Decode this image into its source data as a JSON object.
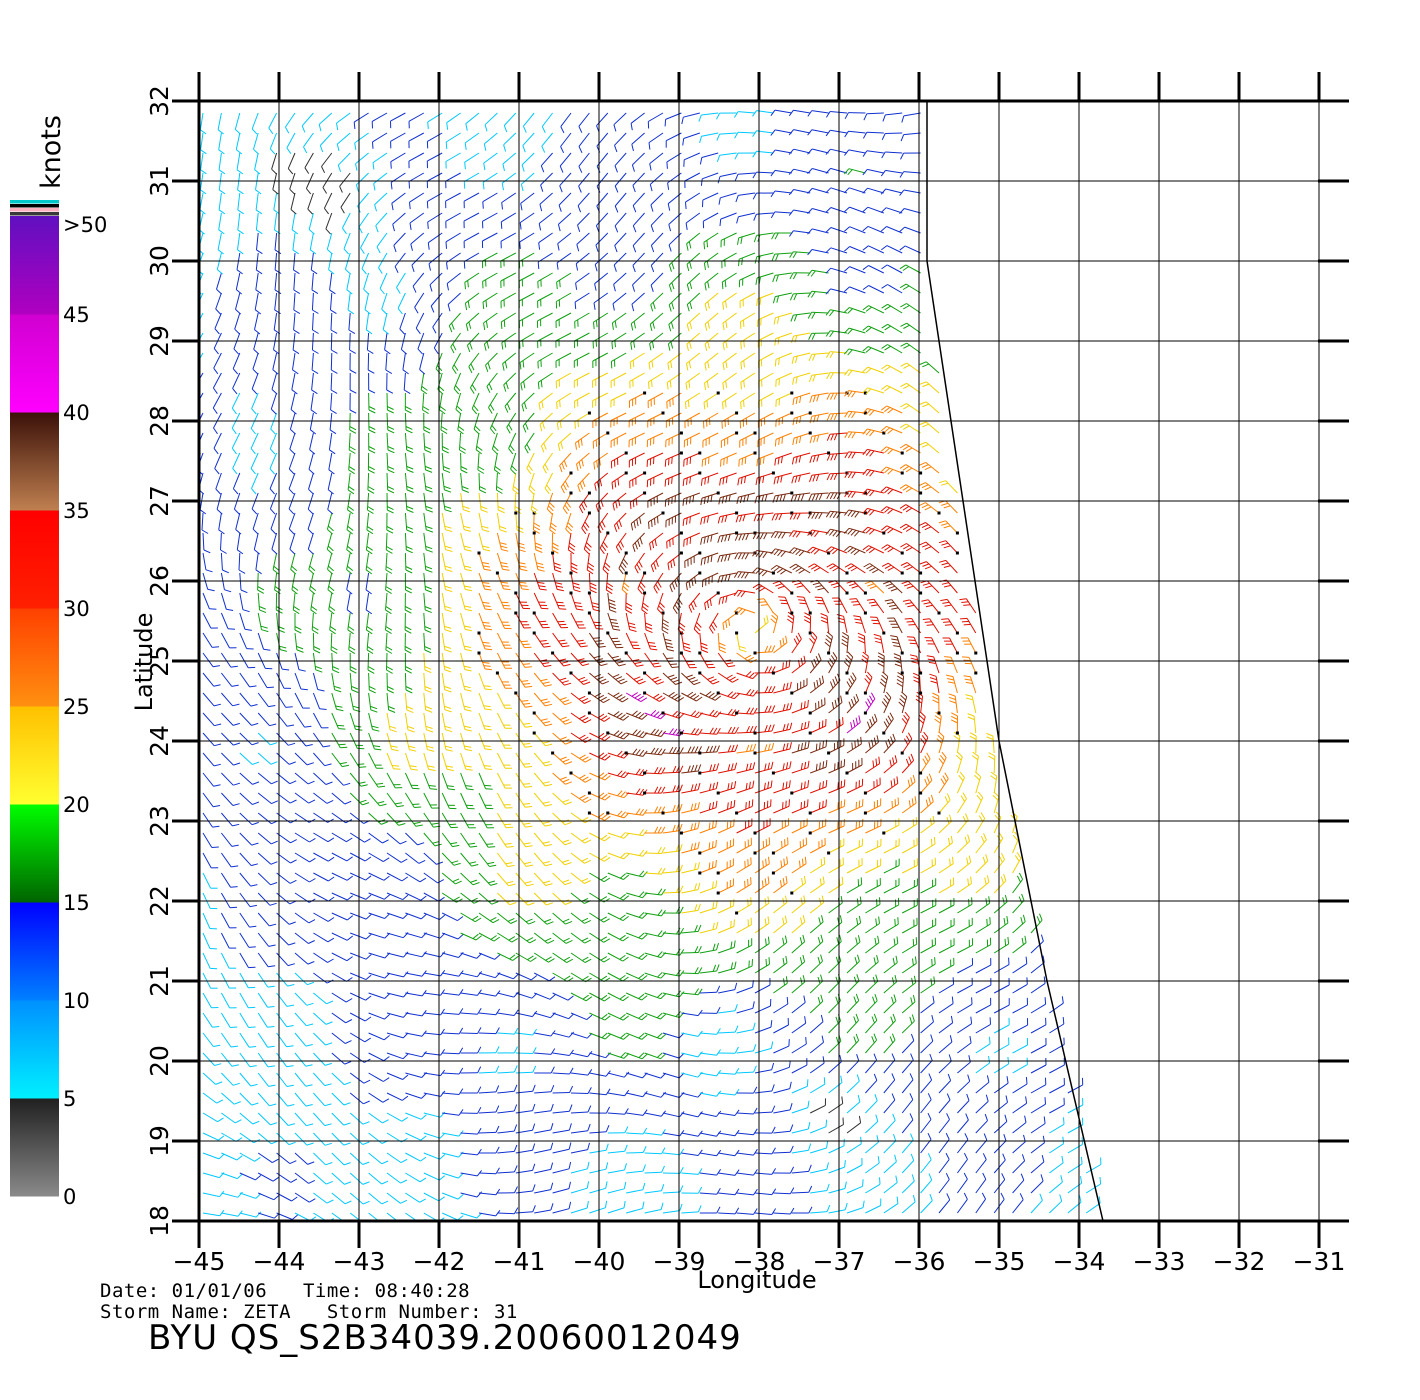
{
  "map": {
    "lon_ticks": [
      -45,
      -44,
      -43,
      -42,
      -41,
      -40,
      -39,
      -38,
      -37,
      -36,
      -35,
      -34,
      -33,
      -32,
      -31
    ],
    "lat_ticks": [
      18,
      19,
      20,
      21,
      22,
      23,
      24,
      25,
      26,
      27,
      28,
      29,
      30,
      31,
      32
    ],
    "lon_range": [
      -45,
      -31
    ],
    "lat_range": [
      18,
      32
    ],
    "xlabel": "Longitude",
    "ylabel": "Latitude",
    "swath_boundary": [
      [
        -45,
        32
      ],
      [
        -35.9,
        32
      ],
      [
        -35.9,
        30
      ],
      [
        -35.0,
        24
      ],
      [
        -34.4,
        21
      ],
      [
        -33.7,
        18
      ],
      [
        -45,
        18
      ]
    ],
    "storm_center": {
      "lon": -38.1,
      "lat": 25.4
    },
    "grid": true
  },
  "colorbar": {
    "unit": "knots",
    "top_label": ">50",
    "labels": [
      "45",
      "40",
      "35",
      "30",
      "25",
      "20",
      "15",
      "10",
      "5",
      "0"
    ],
    "bands": [
      {
        "from": 0,
        "to": 5,
        "colors": [
          "#8a8a8a",
          "#202020"
        ]
      },
      {
        "from": 5,
        "to": 10,
        "colors": [
          "#00f0ff",
          "#0090ff"
        ]
      },
      {
        "from": 10,
        "to": 15,
        "colors": [
          "#0080ff",
          "#0000ff"
        ]
      },
      {
        "from": 15,
        "to": 20,
        "colors": [
          "#006400",
          "#00ff00"
        ]
      },
      {
        "from": 20,
        "to": 25,
        "colors": [
          "#ffff30",
          "#ffc000"
        ]
      },
      {
        "from": 25,
        "to": 30,
        "colors": [
          "#ff9010",
          "#ff4000"
        ]
      },
      {
        "from": 30,
        "to": 35,
        "colors": [
          "#ff2000",
          "#ff0000"
        ]
      },
      {
        "from": 35,
        "to": 40,
        "colors": [
          "#c08050",
          "#3a1008"
        ]
      },
      {
        "from": 40,
        "to": 45,
        "colors": [
          "#ff00ff",
          "#d000d0"
        ]
      },
      {
        "from": 45,
        "to": 50,
        "colors": [
          "#b000c0",
          "#6010c0"
        ]
      }
    ]
  },
  "info": {
    "date_line": "Date: 01/01/06   Time: 08:40:28",
    "storm_line": "Storm Name: ZETA   Storm Number: 31",
    "file_id": "BYU  QS_S2B34039.20060012049"
  }
}
